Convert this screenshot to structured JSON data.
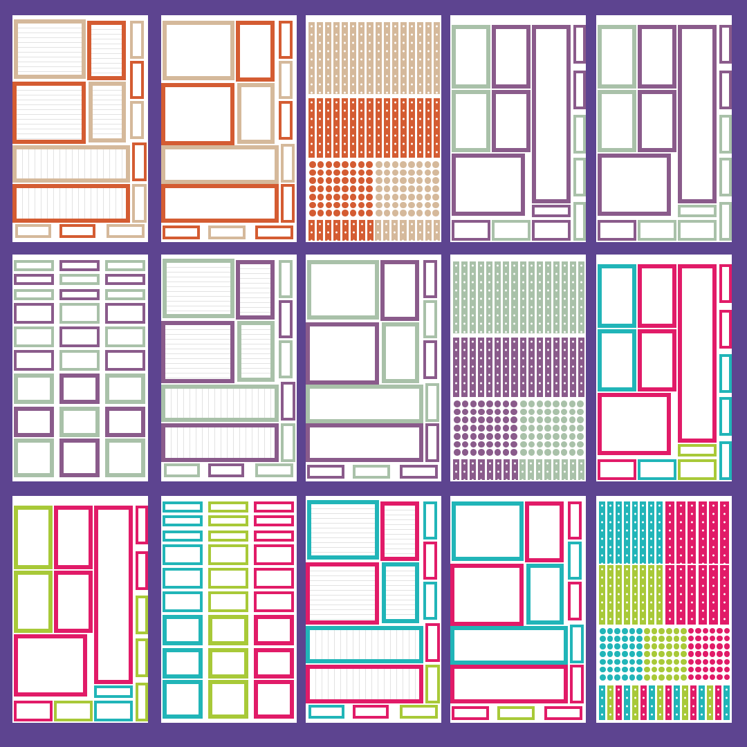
{
  "background": "#5d4490",
  "palette": {
    "orange": "#d45c32",
    "tan": "#d5b99b",
    "sage": "#a9c1a9",
    "purple": "#8a5b8b",
    "pink": "#e11b68",
    "teal": "#21b5b8",
    "lime": "#a8c938"
  },
  "sheets": [
    {
      "template": "lined-frames",
      "colors": [
        "orange",
        "tan",
        "tan"
      ]
    },
    {
      "template": "plain-frames",
      "colors": [
        "orange",
        "tan",
        "tan"
      ]
    },
    {
      "template": "dot-strips",
      "colors": [
        "orange",
        "tan",
        "tan"
      ]
    },
    {
      "template": "tall-column",
      "colors": [
        "purple",
        "sage",
        "purple"
      ]
    },
    {
      "template": "tall-column",
      "colors": [
        "purple",
        "sage",
        "sage"
      ]
    },
    {
      "template": "small-grid",
      "colors": [
        "sage",
        "purple",
        "sage"
      ]
    },
    {
      "template": "lined-frames",
      "colors": [
        "purple",
        "sage",
        "sage"
      ]
    },
    {
      "template": "plain-frames",
      "colors": [
        "purple",
        "sage",
        "sage"
      ]
    },
    {
      "template": "dot-strips",
      "colors": [
        "purple",
        "sage",
        "sage"
      ]
    },
    {
      "template": "tall-column",
      "colors": [
        "pink",
        "teal",
        "lime"
      ]
    },
    {
      "template": "tall-column",
      "colors": [
        "pink",
        "lime",
        "teal"
      ]
    },
    {
      "template": "small-grid",
      "colors": [
        "teal",
        "lime",
        "pink"
      ]
    },
    {
      "template": "lined-frames",
      "colors": [
        "pink",
        "teal",
        "lime"
      ]
    },
    {
      "template": "plain-frames",
      "colors": [
        "pink",
        "teal",
        "lime"
      ]
    },
    {
      "template": "dot-strips",
      "colors": [
        "teal",
        "lime",
        "pink"
      ]
    }
  ]
}
